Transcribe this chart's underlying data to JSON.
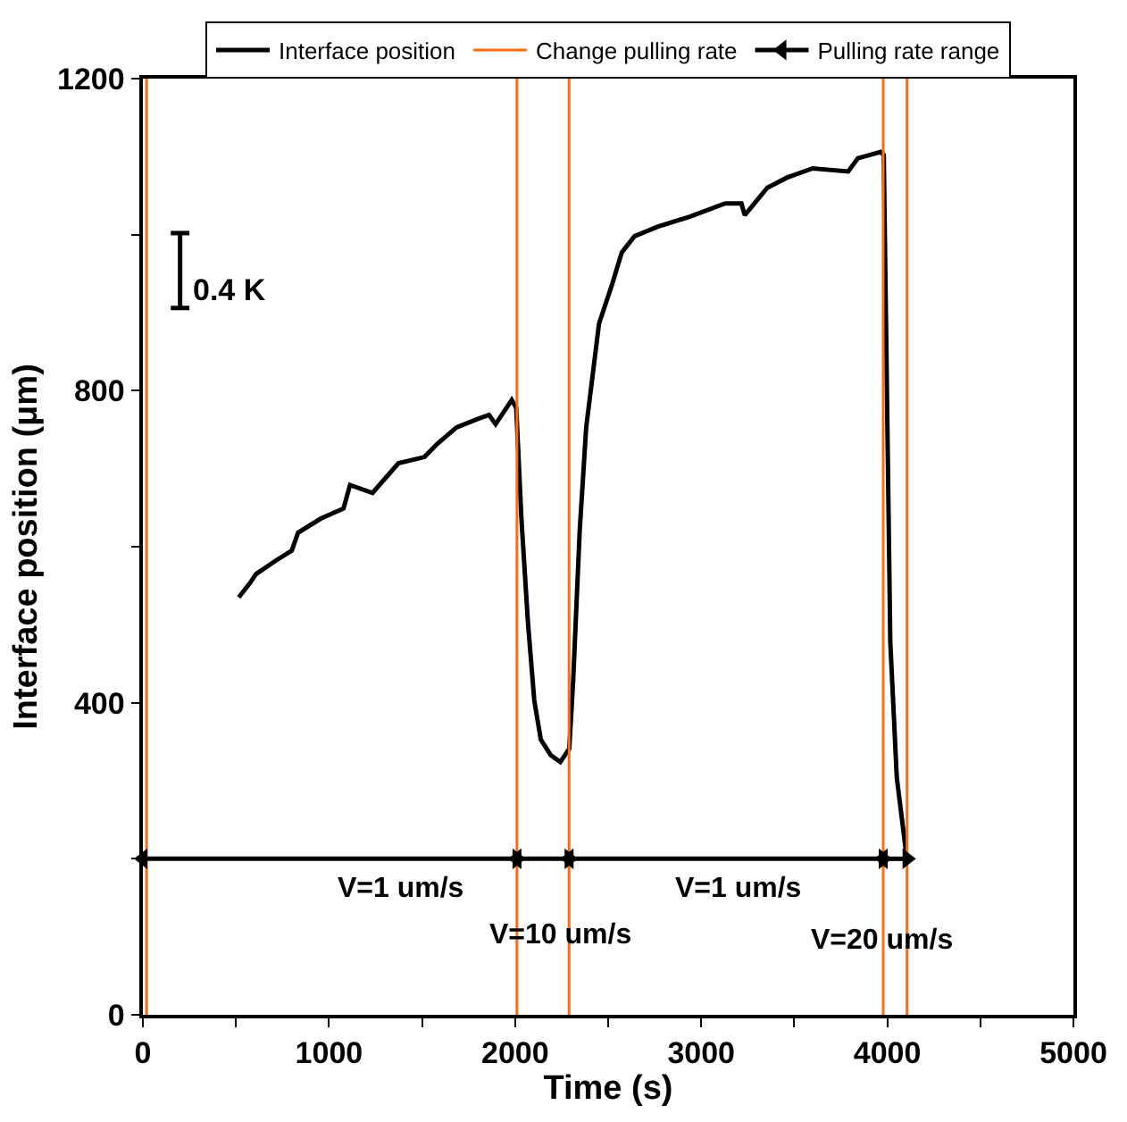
{
  "chart_data": {
    "type": "line",
    "xlabel": "Time (s)",
    "ylabel": "Interface position (μm)",
    "xlim": [
      0,
      5000
    ],
    "ylim": [
      0,
      1200
    ],
    "xticks": [
      0,
      {
        "value": 500,
        "label": null
      },
      1000,
      {
        "value": 1500,
        "label": null
      },
      2000,
      {
        "value": 2500,
        "label": null
      },
      3000,
      {
        "value": 3500,
        "label": null
      },
      4000,
      {
        "value": 4500,
        "label": null
      },
      5000
    ],
    "yticks": [
      0,
      {
        "value": 200,
        "label": null
      },
      400,
      {
        "value": 600,
        "label": null
      },
      800,
      {
        "value": 1000,
        "label": null
      },
      1200
    ],
    "legend": "top",
    "marker": "none",
    "line_style": "solid",
    "series": [
      {
        "name": "Interface position",
        "color": "#000000",
        "x": [
          515,
          574,
          608,
          713,
          800,
          834,
          956,
          1078,
          1113,
          1234,
          1373,
          1513,
          1582,
          1686,
          1791,
          1860,
          1895,
          1982,
          2006,
          2034,
          2069,
          2103,
          2138,
          2191,
          2243,
          2291,
          2312,
          2347,
          2382,
          2451,
          2521,
          2573,
          2642,
          2764,
          2938,
          3129,
          3216,
          3234,
          3355,
          3460,
          3599,
          3790,
          3842,
          3964,
          3981,
          4016,
          4051,
          4103
        ],
        "values": [
          535,
          553,
          565,
          582,
          595,
          618,
          636,
          649,
          679,
          669,
          707,
          715,
          732,
          753,
          763,
          769,
          757,
          788,
          778,
          636,
          503,
          403,
          353,
          333,
          324,
          341,
          428,
          620,
          753,
          886,
          936,
          977,
          998,
          1010,
          1023,
          1040,
          1040,
          1025,
          1060,
          1073,
          1085,
          1081,
          1098,
          1106,
          1102,
          478,
          304,
          204
        ]
      },
      {
        "name": "Change pulling rate",
        "color": "#ff6a13",
        "x": [
          20,
          20,
          null,
          2010,
          2010,
          null,
          2290,
          2290,
          null,
          3978,
          3978,
          null,
          4106,
          4106
        ],
        "values": [
          0,
          1200,
          null,
          0,
          1200,
          null,
          0,
          1200,
          null,
          0,
          1200,
          null,
          0,
          1200
        ]
      },
      {
        "name": "Pulling rate range",
        "color": "#000000",
        "marker": "triangle",
        "x": [
          0,
          2010,
          null,
          2010,
          2290,
          null,
          2290,
          3978,
          null,
          3978,
          4106
        ],
        "values": [
          200,
          200,
          null,
          200,
          200,
          null,
          200,
          200,
          null,
          200,
          200
        ]
      }
    ],
    "annotations": [
      "0.4 K",
      "V=1 um/s",
      "V=10 um/s",
      "V=1 um/s",
      "V=20 um/s"
    ]
  }
}
